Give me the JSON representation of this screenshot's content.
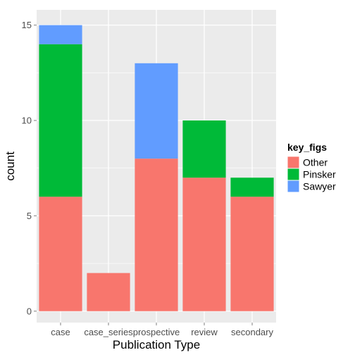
{
  "chart_data": {
    "type": "bar",
    "stacked": true,
    "title": "",
    "xlabel": "Publication Type",
    "ylabel": "count",
    "categories": [
      "case",
      "case_series",
      "prospective",
      "review",
      "secondary"
    ],
    "series": [
      {
        "name": "Other",
        "color": "#F8766D",
        "values": [
          6,
          2,
          8,
          7,
          6
        ]
      },
      {
        "name": "Pinsker",
        "color": "#00BA38",
        "values": [
          8,
          0,
          0,
          3,
          1
        ]
      },
      {
        "name": "Sawyer",
        "color": "#619CFF",
        "values": [
          1,
          0,
          5,
          0,
          0
        ]
      }
    ],
    "ylim": [
      -0.6,
      15.8
    ],
    "yticks": [
      0,
      5,
      10,
      15
    ],
    "grid": true,
    "legend": {
      "title": "key_figs",
      "position": "right"
    },
    "panel_background": "#EBEBEB",
    "grid_color": "#FFFFFF"
  }
}
